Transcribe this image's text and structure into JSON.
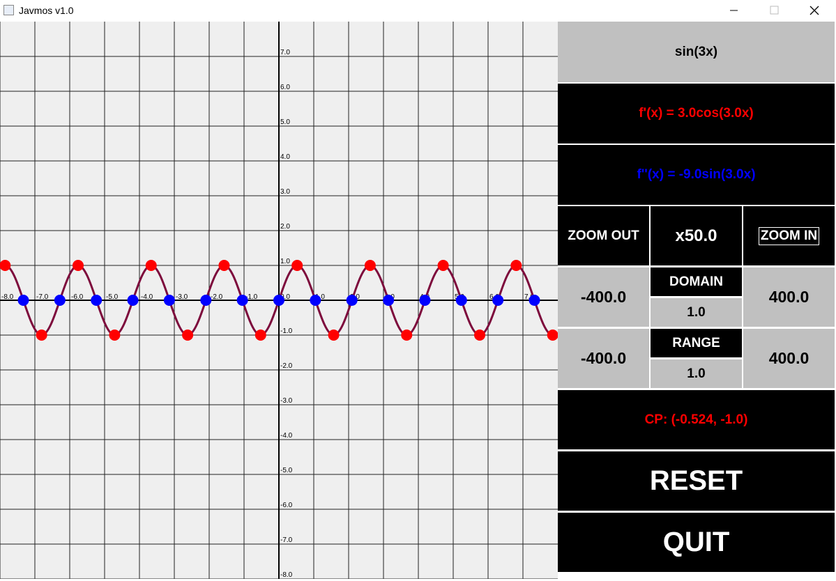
{
  "window": {
    "title": "Javmos v1.0"
  },
  "graph": {
    "xlim": [
      -8,
      8
    ],
    "ylim": [
      -8,
      8
    ],
    "xticks": [
      {
        "value": -8,
        "label": "-8.0"
      },
      {
        "value": -7,
        "label": "-7.0"
      },
      {
        "value": -6,
        "label": "-6.0"
      },
      {
        "value": -5,
        "label": "-5.0"
      },
      {
        "value": -4,
        "label": "-4.0"
      },
      {
        "value": -3,
        "label": "-3.0"
      },
      {
        "value": -2,
        "label": "-2.0"
      },
      {
        "value": -1,
        "label": "-1.0"
      },
      {
        "value": 0,
        "label": "0.0"
      },
      {
        "value": 1,
        "label": "1.0"
      },
      {
        "value": 2,
        "label": "2.0"
      },
      {
        "value": 3,
        "label": "3.0"
      },
      {
        "value": 4,
        "label": "4.0"
      },
      {
        "value": 5,
        "label": "5.0"
      },
      {
        "value": 6,
        "label": "6.0"
      },
      {
        "value": 7,
        "label": "7.0"
      }
    ],
    "yticks": [
      {
        "value": 7,
        "label": "7.0"
      },
      {
        "value": 6,
        "label": "6.0"
      },
      {
        "value": 5,
        "label": "5.0"
      },
      {
        "value": 4,
        "label": "4.0"
      },
      {
        "value": 3,
        "label": "3.0"
      },
      {
        "value": 2,
        "label": "2.0"
      },
      {
        "value": 1,
        "label": "1.0"
      },
      {
        "value": -1,
        "label": "-1.0"
      },
      {
        "value": -2,
        "label": "-2.0"
      },
      {
        "value": -3,
        "label": "-3.0"
      },
      {
        "value": -4,
        "label": "-4.0"
      },
      {
        "value": -5,
        "label": "-5.0"
      },
      {
        "value": -6,
        "label": "-6.0"
      },
      {
        "value": -7,
        "label": "-7.0"
      },
      {
        "value": -8,
        "label": "-8.0"
      }
    ],
    "curve_color": "#7d0a3c",
    "critical_points": {
      "color": "#ff0000",
      "x": [
        -7.854,
        -6.807,
        -5.76,
        -4.712,
        -3.665,
        -2.618,
        -1.571,
        -0.524,
        0.524,
        1.571,
        2.618,
        3.665,
        4.712,
        5.76,
        6.807,
        7.854
      ],
      "y": [
        1,
        -1,
        1,
        -1,
        1,
        -1,
        1,
        -1,
        1,
        -1,
        1,
        -1,
        1,
        -1,
        1,
        -1
      ]
    },
    "inflection_points": {
      "color": "#0000ff",
      "x": [
        -7.33,
        -6.283,
        -5.236,
        -4.189,
        -3.142,
        -2.094,
        -1.047,
        0,
        1.047,
        2.094,
        3.142,
        4.189,
        5.236,
        6.283,
        7.33
      ],
      "y": [
        0,
        0,
        0,
        0,
        0,
        0,
        0,
        0,
        0,
        0,
        0,
        0,
        0,
        0,
        0
      ]
    }
  },
  "panel": {
    "function": "sin(3x)",
    "first_derivative": "f'(x) = 3.0cos(3.0x)",
    "second_derivative": "f''(x) = -9.0sin(3.0x)",
    "zoom_out": "ZOOM OUT",
    "zoom": "x50.0",
    "zoom_in": "ZOOM IN",
    "domain": {
      "label": "DOMAIN",
      "min": "-400.0",
      "max": "400.0",
      "step": "1.0"
    },
    "range": {
      "label": "RANGE",
      "min": "-400.0",
      "max": "400.0",
      "step": "1.0"
    },
    "critical_point": "CP: (-0.524, -1.0)",
    "reset": "RESET",
    "quit": "QUIT"
  }
}
